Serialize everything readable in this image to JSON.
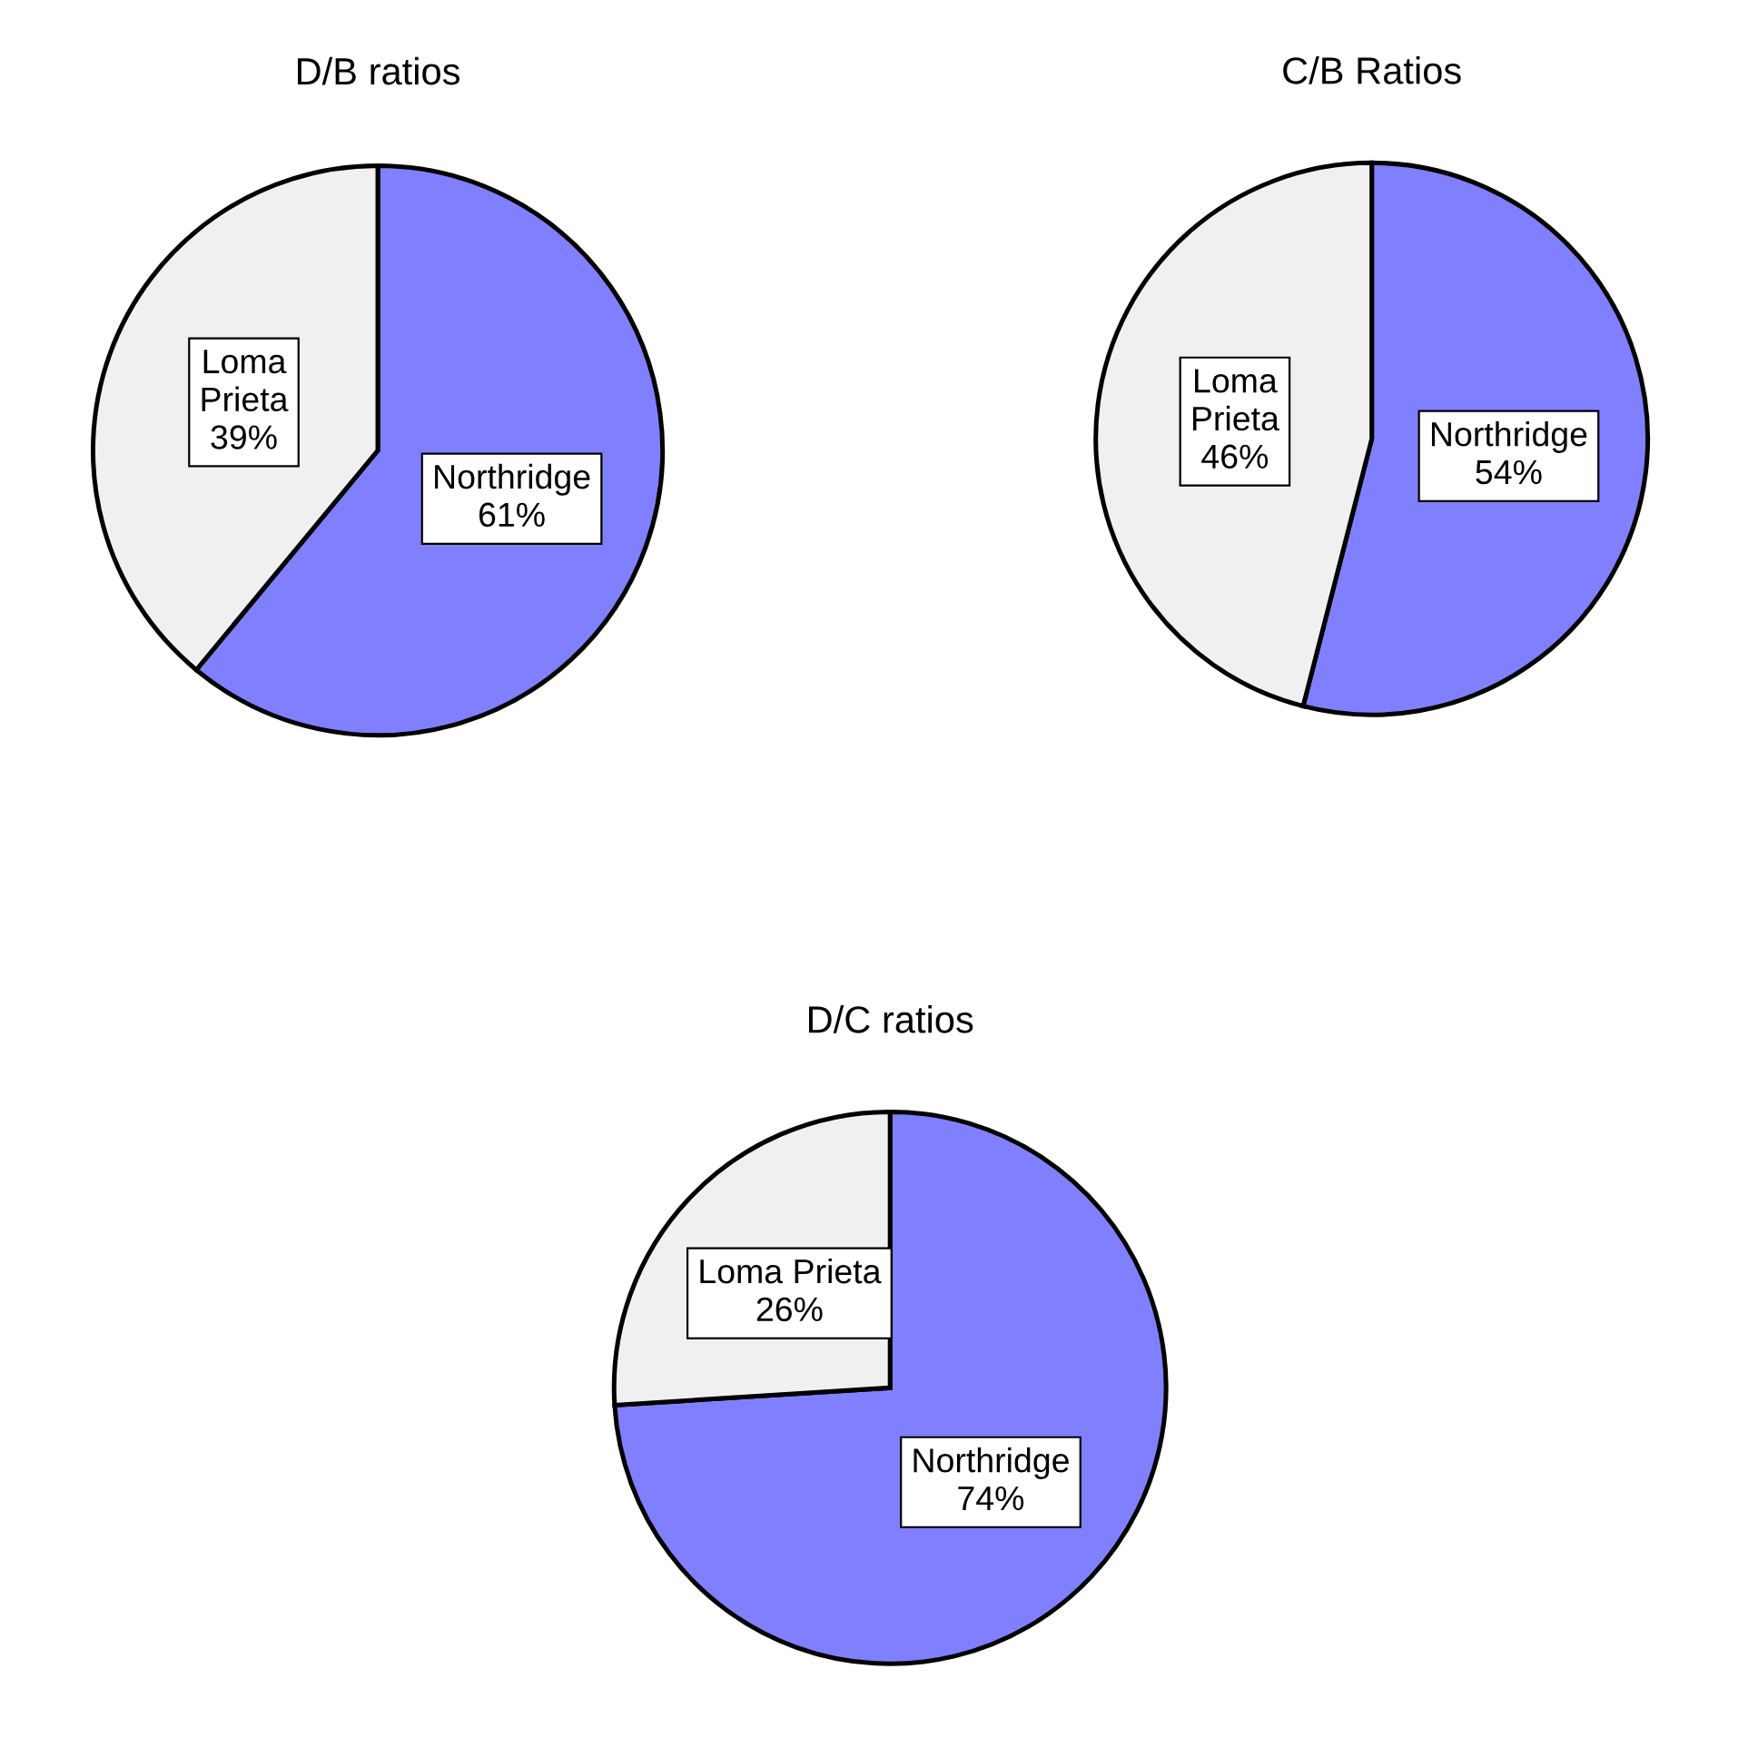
{
  "chart_data": [
    {
      "type": "pie",
      "title": "D/B ratios",
      "categories": [
        "Northridge",
        "Loma Prieta"
      ],
      "values": [
        61,
        39
      ],
      "colors": [
        "#8080ff",
        "#f0f0f0"
      ],
      "value_labels": [
        "61%",
        "39%"
      ]
    },
    {
      "type": "pie",
      "title": "C/B Ratios",
      "categories": [
        "Northridge",
        "Loma Prieta"
      ],
      "values": [
        54,
        46
      ],
      "colors": [
        "#8080ff",
        "#f0f0f0"
      ],
      "value_labels": [
        "54%",
        "46%"
      ]
    },
    {
      "type": "pie",
      "title": "D/C ratios",
      "categories": [
        "Northridge",
        "Loma Prieta"
      ],
      "values": [
        74,
        26
      ],
      "colors": [
        "#8080ff",
        "#f0f0f0"
      ],
      "value_labels": [
        "74%",
        "26%"
      ]
    }
  ]
}
